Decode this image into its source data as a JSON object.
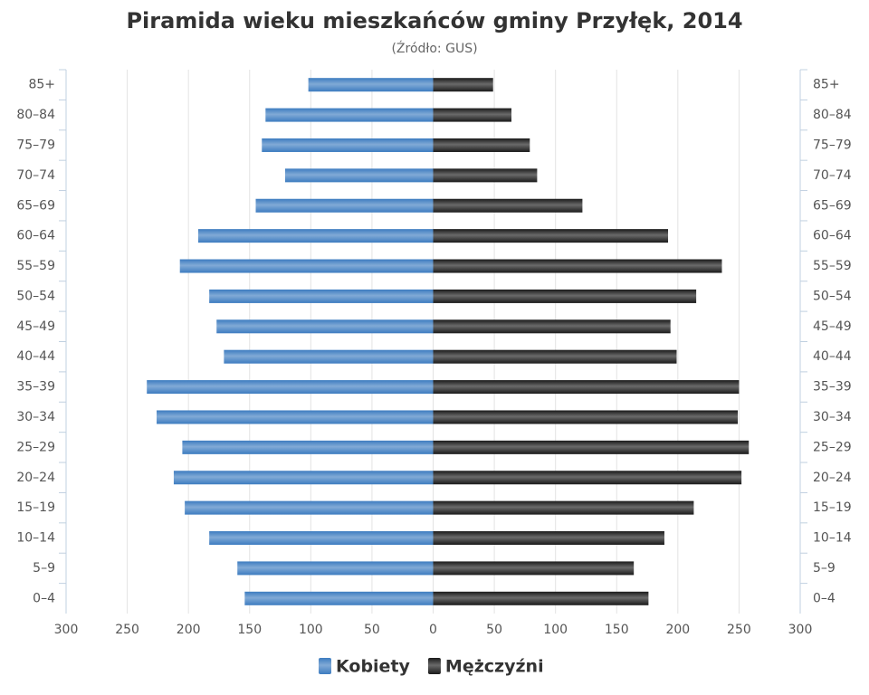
{
  "chart_data": {
    "type": "pyramid",
    "title": "Piramida wieku mieszkańców gminy Przyłęk, 2014",
    "subtitle": "(Źródło: GUS)",
    "categories": [
      "85+",
      "80–84",
      "75–79",
      "70–74",
      "65–69",
      "60–64",
      "55–59",
      "50–54",
      "45–49",
      "40–44",
      "35–39",
      "30–34",
      "25–29",
      "20–24",
      "15–19",
      "10–14",
      "5–9",
      "0–4"
    ],
    "series": [
      {
        "name": "Kobiety",
        "color": "#3d7cc0",
        "values": [
          -102,
          -137,
          -140,
          -121,
          -145,
          -192,
          -207,
          -183,
          -177,
          -171,
          -234,
          -226,
          -205,
          -212,
          -203,
          -183,
          -160,
          -154
        ]
      },
      {
        "name": "Mężczyźni",
        "color": "#1a1a1a",
        "values": [
          49,
          64,
          79,
          85,
          122,
          192,
          236,
          215,
          194,
          199,
          250,
          249,
          258,
          252,
          213,
          189,
          164,
          176
        ]
      }
    ],
    "xlim": [
      -300,
      300
    ],
    "xticks": [
      {
        "value": -300,
        "label": "300"
      },
      {
        "value": -250,
        "label": "250"
      },
      {
        "value": -200,
        "label": "200"
      },
      {
        "value": -150,
        "label": "150"
      },
      {
        "value": -100,
        "label": "100"
      },
      {
        "value": -50,
        "label": "50"
      },
      0,
      50,
      100,
      150,
      200,
      250,
      300
    ],
    "grid": true
  }
}
